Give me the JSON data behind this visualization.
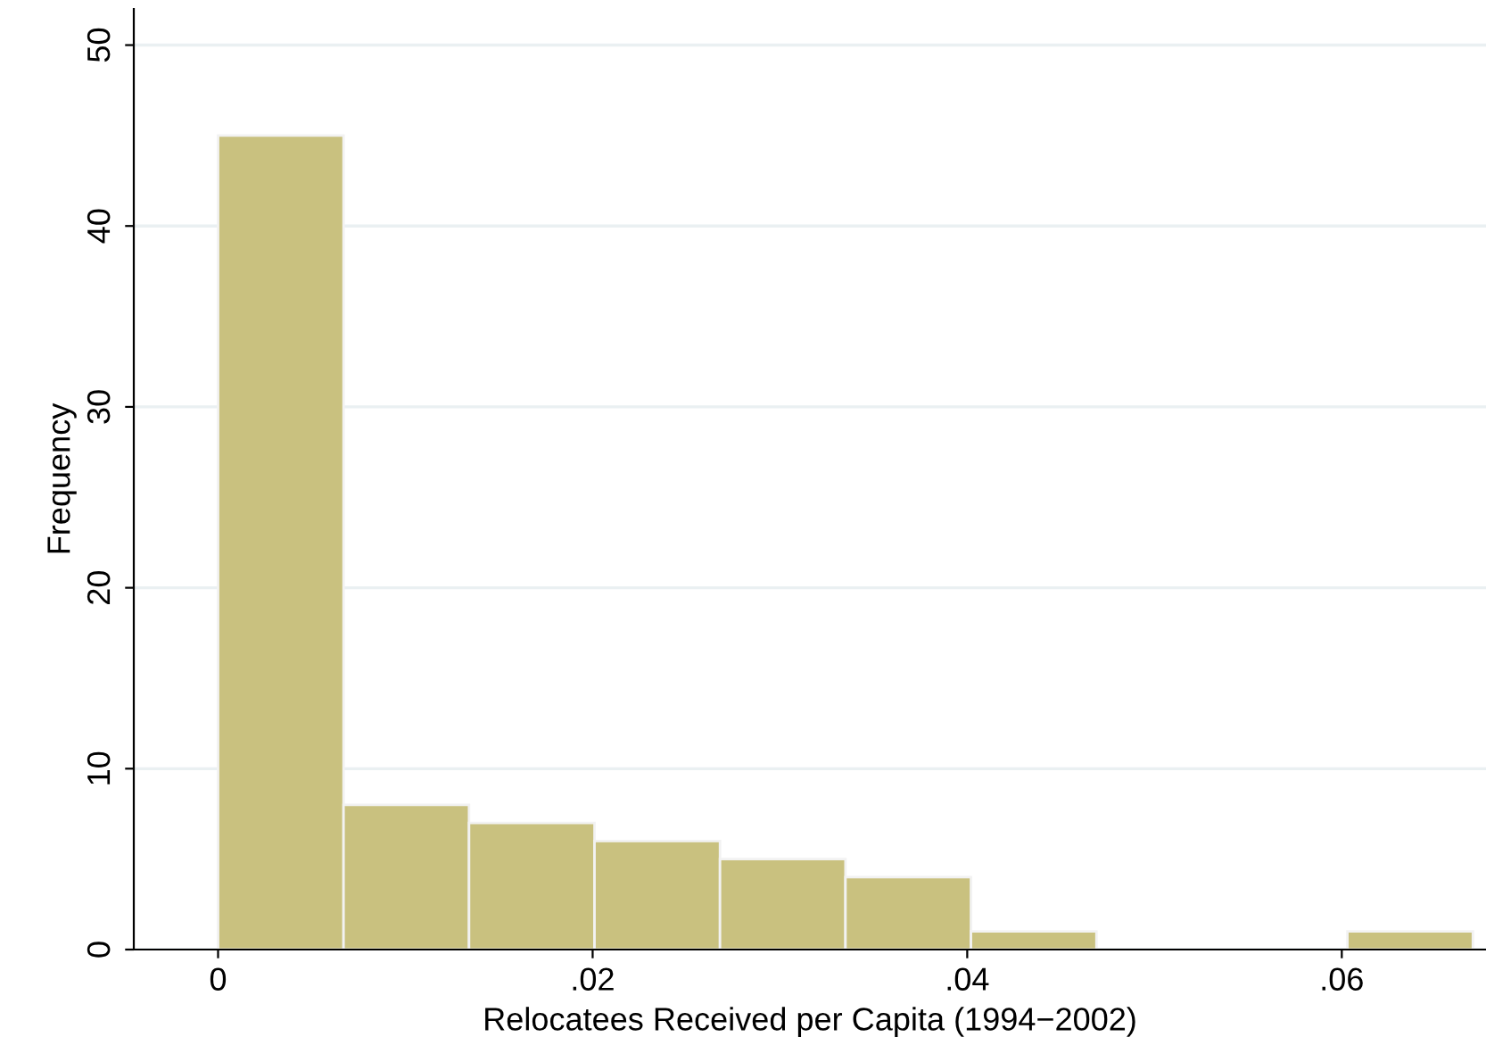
{
  "chart_data": {
    "type": "histogram",
    "xlabel": "Relocatees Received per Capita (1994−2002)",
    "ylabel": "Frequency",
    "bins": [
      0,
      0.0067,
      0.0134,
      0.0201,
      0.0268,
      0.0335,
      0.0402,
      0.0469,
      0.0536,
      0.0603,
      0.067
    ],
    "values": [
      45,
      8,
      7,
      6,
      5,
      4,
      1,
      0,
      0,
      1
    ],
    "color": "#c9c17f",
    "xlim": [
      -0.0045,
      0.0677
    ],
    "ylim": [
      0,
      52
    ],
    "xticks": [
      0,
      {
        "value": 0.02,
        "label": ".02"
      },
      {
        "value": 0.04,
        "label": ".04"
      },
      {
        "value": 0.06,
        "label": ".06"
      }
    ],
    "yticks": [
      0,
      10,
      20,
      30,
      40,
      50
    ],
    "grid": "y"
  }
}
